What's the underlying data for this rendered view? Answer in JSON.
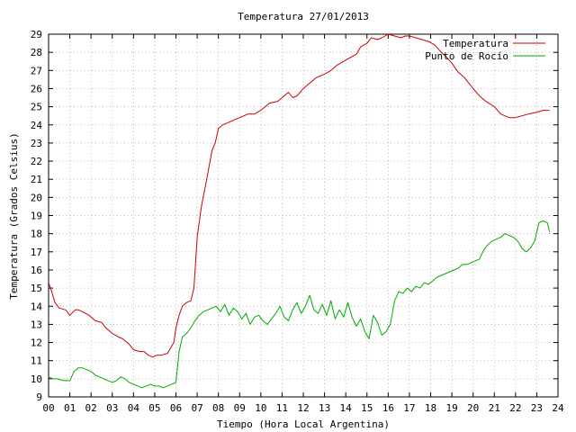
{
  "chart_data": {
    "type": "line",
    "title": "Temperatura 27/01/2013",
    "xlabel": "Tiempo (Hora Local Argentina)",
    "ylabel": "Temperatura (Grados Celsius)",
    "xlim": [
      0,
      24
    ],
    "ylim": [
      9,
      29
    ],
    "x_ticks": [
      "00",
      "01",
      "02",
      "03",
      "04",
      "05",
      "06",
      "07",
      "08",
      "09",
      "10",
      "11",
      "12",
      "13",
      "14",
      "15",
      "16",
      "17",
      "18",
      "19",
      "20",
      "21",
      "22",
      "23",
      "24"
    ],
    "y_ticks": [
      "9",
      "10",
      "11",
      "12",
      "13",
      "14",
      "15",
      "16",
      "17",
      "18",
      "19",
      "20",
      "21",
      "22",
      "23",
      "24",
      "25",
      "26",
      "27",
      "28",
      "29"
    ],
    "grid": true,
    "legend_position": "top-right",
    "series": [
      {
        "name": "Temperatura",
        "color": "#cc0000",
        "x": [
          0.0,
          0.15,
          0.3,
          0.5,
          0.8,
          1.0,
          1.25,
          1.4,
          1.6,
          1.9,
          2.2,
          2.5,
          2.7,
          3.0,
          3.3,
          3.5,
          3.8,
          4.0,
          4.3,
          4.5,
          4.7,
          4.9,
          5.1,
          5.3,
          5.6,
          5.9,
          6.0,
          6.15,
          6.3,
          6.5,
          6.7,
          6.85,
          7.0,
          7.2,
          7.45,
          7.7,
          7.85,
          8.0,
          8.2,
          8.6,
          9.0,
          9.4,
          9.7,
          10.0,
          10.4,
          10.8,
          11.0,
          11.3,
          11.5,
          11.7,
          12.0,
          12.3,
          12.6,
          13.0,
          13.3,
          13.6,
          13.9,
          14.2,
          14.5,
          14.7,
          15.0,
          15.2,
          15.5,
          15.7,
          16.0,
          16.3,
          16.6,
          16.8,
          17.0,
          17.3,
          17.6,
          17.9,
          18.2,
          18.5,
          18.7,
          19.0,
          19.3,
          19.6,
          20.0,
          20.3,
          20.6,
          21.0,
          21.3,
          21.5,
          21.7,
          22.0,
          22.3,
          22.6,
          23.0,
          23.3,
          23.5,
          23.6
        ],
        "y": [
          15.3,
          14.8,
          14.2,
          13.9,
          13.8,
          13.5,
          13.8,
          13.8,
          13.7,
          13.5,
          13.2,
          13.1,
          12.8,
          12.5,
          12.3,
          12.2,
          11.9,
          11.6,
          11.5,
          11.5,
          11.3,
          11.2,
          11.3,
          11.3,
          11.4,
          12.0,
          12.8,
          13.5,
          14.0,
          14.2,
          14.3,
          15.0,
          17.8,
          19.5,
          21.0,
          22.6,
          23.0,
          23.8,
          24.0,
          24.2,
          24.4,
          24.6,
          24.6,
          24.8,
          25.2,
          25.3,
          25.5,
          25.8,
          25.5,
          25.6,
          26.0,
          26.3,
          26.6,
          26.8,
          27.0,
          27.3,
          27.5,
          27.7,
          27.9,
          28.3,
          28.5,
          28.8,
          28.7,
          28.8,
          29.0,
          28.9,
          28.8,
          28.9,
          28.9,
          28.8,
          28.7,
          28.6,
          28.4,
          28.0,
          27.8,
          27.4,
          26.9,
          26.6,
          26.0,
          25.6,
          25.3,
          25.0,
          24.6,
          24.5,
          24.4,
          24.4,
          24.5,
          24.6,
          24.7,
          24.8,
          24.8,
          24.8
        ]
      },
      {
        "name": "Punto de Rocío",
        "color": "#00aa00",
        "x": [
          0.0,
          0.2,
          0.4,
          0.7,
          1.0,
          1.2,
          1.4,
          1.6,
          1.8,
          2.0,
          2.2,
          2.4,
          2.6,
          2.8,
          3.0,
          3.2,
          3.4,
          3.6,
          3.8,
          4.0,
          4.2,
          4.4,
          4.6,
          4.8,
          5.0,
          5.2,
          5.4,
          5.6,
          5.8,
          6.0,
          6.15,
          6.3,
          6.5,
          6.7,
          6.9,
          7.1,
          7.3,
          7.5,
          7.7,
          7.9,
          8.1,
          8.3,
          8.5,
          8.7,
          8.9,
          9.1,
          9.3,
          9.5,
          9.7,
          9.9,
          10.1,
          10.3,
          10.5,
          10.7,
          10.9,
          11.1,
          11.3,
          11.5,
          11.7,
          11.9,
          12.1,
          12.3,
          12.5,
          12.7,
          12.9,
          13.1,
          13.3,
          13.5,
          13.7,
          13.9,
          14.1,
          14.3,
          14.5,
          14.7,
          14.9,
          15.1,
          15.3,
          15.5,
          15.7,
          15.9,
          16.1,
          16.3,
          16.5,
          16.7,
          16.9,
          17.1,
          17.3,
          17.5,
          17.7,
          17.9,
          18.1,
          18.3,
          18.5,
          18.7,
          18.9,
          19.1,
          19.3,
          19.5,
          19.7,
          19.9,
          20.1,
          20.3,
          20.5,
          20.7,
          20.9,
          21.1,
          21.3,
          21.5,
          21.7,
          21.9,
          22.1,
          22.3,
          22.5,
          22.7,
          22.9,
          23.1,
          23.3,
          23.5,
          23.6
        ],
        "y": [
          10.1,
          10.0,
          10.0,
          9.9,
          9.9,
          10.4,
          10.6,
          10.6,
          10.5,
          10.4,
          10.2,
          10.1,
          10.0,
          9.9,
          9.8,
          9.9,
          10.1,
          10.0,
          9.8,
          9.7,
          9.6,
          9.5,
          9.6,
          9.7,
          9.6,
          9.6,
          9.5,
          9.6,
          9.7,
          9.8,
          11.5,
          12.3,
          12.5,
          12.8,
          13.2,
          13.5,
          13.7,
          13.8,
          13.9,
          14.0,
          13.7,
          14.1,
          13.5,
          13.9,
          13.7,
          13.3,
          13.6,
          13.0,
          13.4,
          13.5,
          13.2,
          13.0,
          13.3,
          13.6,
          14.0,
          13.4,
          13.2,
          13.8,
          14.2,
          13.6,
          14.0,
          14.6,
          13.8,
          13.6,
          14.1,
          13.5,
          14.3,
          13.3,
          13.8,
          13.4,
          14.2,
          13.4,
          12.9,
          13.3,
          12.6,
          12.2,
          13.5,
          13.1,
          12.4,
          12.6,
          13.0,
          14.3,
          14.8,
          14.7,
          15.0,
          14.8,
          15.1,
          15.0,
          15.3,
          15.2,
          15.4,
          15.6,
          15.7,
          15.8,
          15.9,
          16.0,
          16.1,
          16.3,
          16.3,
          16.4,
          16.5,
          16.6,
          17.1,
          17.4,
          17.6,
          17.7,
          17.8,
          18.0,
          17.9,
          17.8,
          17.6,
          17.2,
          17.0,
          17.2,
          17.6,
          18.6,
          18.7,
          18.6,
          18.1
        ]
      }
    ]
  }
}
